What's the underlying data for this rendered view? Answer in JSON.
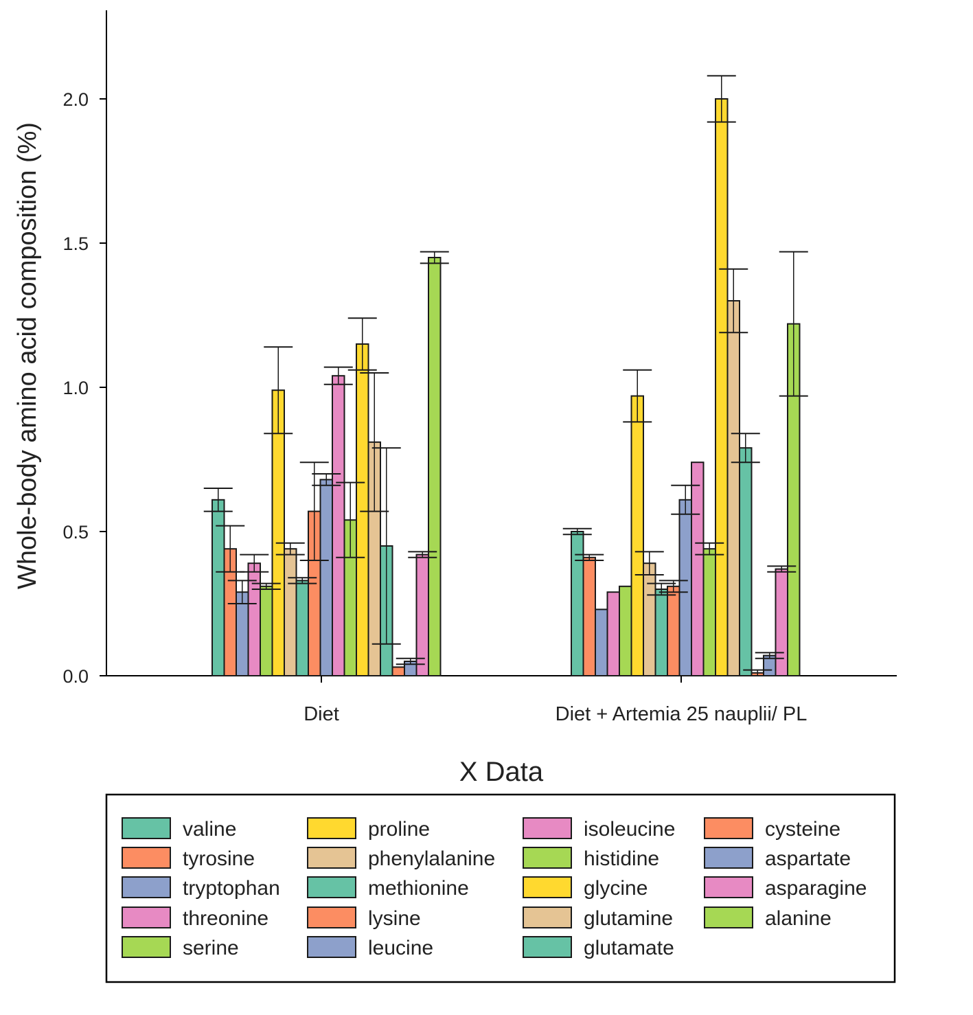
{
  "chart_data": {
    "type": "bar",
    "title": "",
    "xlabel": "X Data",
    "ylabel": "Whole-body amino acid composition (%)",
    "ylim": [
      0,
      2.2
    ],
    "yticks": [
      "0.0",
      "0.5",
      "1.0",
      "1.5",
      "2.0"
    ],
    "categories": [
      "Diet",
      "Diet + Artemia 25 nauplii/ PL"
    ],
    "series": [
      {
        "name": "valine",
        "color": "#66c2a5",
        "values": [
          0.61,
          0.5
        ],
        "errors": [
          0.04,
          0.01
        ]
      },
      {
        "name": "tyrosine",
        "color": "#fc8d62",
        "values": [
          0.44,
          0.41
        ],
        "errors": [
          0.08,
          0.01
        ]
      },
      {
        "name": "tryptophan",
        "color": "#8da0cb",
        "values": [
          0.29,
          0.23
        ],
        "errors": [
          0.04,
          0.0
        ]
      },
      {
        "name": "threonine",
        "color": "#e78ac3",
        "values": [
          0.39,
          0.29
        ],
        "errors": [
          0.03,
          0.0
        ]
      },
      {
        "name": "serine",
        "color": "#a6d854",
        "values": [
          0.31,
          0.31
        ],
        "errors": [
          0.01,
          0.0
        ]
      },
      {
        "name": "proline",
        "color": "#ffd92f",
        "values": [
          0.99,
          0.97
        ],
        "errors": [
          0.15,
          0.09
        ]
      },
      {
        "name": "phenylalanine",
        "color": "#e5c494",
        "values": [
          0.44,
          0.39
        ],
        "errors": [
          0.02,
          0.04
        ]
      },
      {
        "name": "methionine",
        "color": "#66c2a5",
        "values": [
          0.33,
          0.3
        ],
        "errors": [
          0.01,
          0.02
        ]
      },
      {
        "name": "lysine",
        "color": "#fc8d62",
        "values": [
          0.57,
          0.31
        ],
        "errors": [
          0.17,
          0.02
        ]
      },
      {
        "name": "leucine",
        "color": "#8da0cb",
        "values": [
          0.68,
          0.61
        ],
        "errors": [
          0.02,
          0.05
        ]
      },
      {
        "name": "isoleucine",
        "color": "#e78ac3",
        "values": [
          1.04,
          0.74
        ],
        "errors": [
          0.03,
          0.0
        ]
      },
      {
        "name": "histidine",
        "color": "#a6d854",
        "values": [
          0.54,
          0.44
        ],
        "errors": [
          0.13,
          0.02
        ]
      },
      {
        "name": "glycine",
        "color": "#ffd92f",
        "values": [
          1.15,
          2.0
        ],
        "errors": [
          0.09,
          0.08
        ]
      },
      {
        "name": "glutamine",
        "color": "#e5c494",
        "values": [
          0.81,
          1.3
        ],
        "errors": [
          0.24,
          0.11
        ]
      },
      {
        "name": "glutamate",
        "color": "#66c2a5",
        "values": [
          0.45,
          0.79
        ],
        "errors": [
          0.34,
          0.05
        ]
      },
      {
        "name": "cysteine",
        "color": "#fc8d62",
        "values": [
          0.03,
          0.01
        ],
        "errors": [
          0.0,
          0.01
        ]
      },
      {
        "name": "aspartate",
        "color": "#8da0cb",
        "values": [
          0.05,
          0.07
        ],
        "errors": [
          0.01,
          0.01
        ]
      },
      {
        "name": "asparagine",
        "color": "#e78ac3",
        "values": [
          0.42,
          0.37
        ],
        "errors": [
          0.01,
          0.01
        ]
      },
      {
        "name": "alanine",
        "color": "#a6d854",
        "values": [
          1.45,
          1.22
        ],
        "errors": [
          0.02,
          0.25
        ]
      }
    ],
    "legend": {
      "columns": [
        [
          "valine",
          "tyrosine",
          "tryptophan",
          "threonine",
          "serine"
        ],
        [
          "proline",
          "phenylalanine",
          "methionine",
          "lysine",
          "leucine"
        ],
        [
          "isoleucine",
          "histidine",
          "glycine",
          "glutamine",
          "glutamate"
        ],
        [
          "cysteine",
          "aspartate",
          "asparagine",
          "alanine"
        ]
      ]
    }
  }
}
